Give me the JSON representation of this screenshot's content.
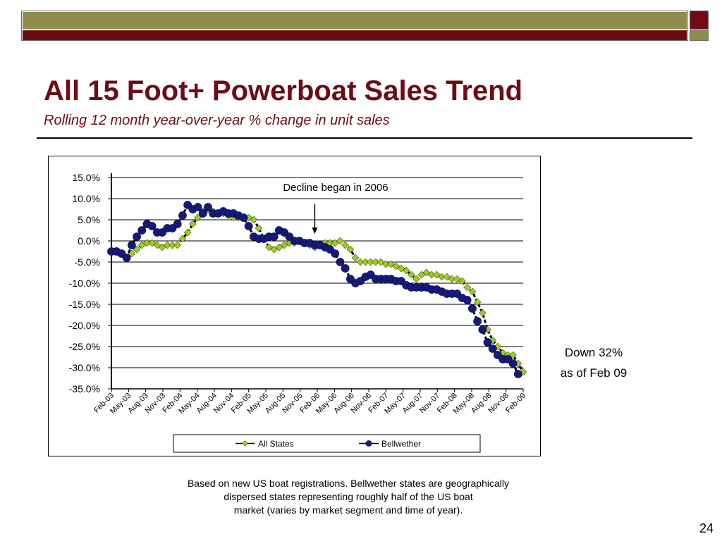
{
  "slide": {
    "title": "All 15 Foot+ Powerboat Sales Trend",
    "subtitle": "Rolling 12 month year-over-year % change in unit sales",
    "annotation_line1": "Down 32%",
    "annotation_line2": "as of Feb 09",
    "footnote_line1": "Based on new US boat registrations. Bellwether states are geographically",
    "footnote_line2": "dispersed states representing roughly half of the US boat",
    "footnote_line3": "market (varies by market segment and time of year).",
    "page_number": "24"
  },
  "colors": {
    "header_olive": "#8e8c4a",
    "header_maroon": "#6e0b14",
    "title": "#6e0b14",
    "series_all_states": "#9acd1e",
    "series_bellwether": "#151a7a"
  },
  "chart_data": {
    "type": "line",
    "ylim": [
      -35,
      15
    ],
    "yticks": [
      "15.0%",
      "10.0%",
      "5.0%",
      "0.0%",
      "-5.0%",
      "-10.0%",
      "-15.0%",
      "-20.0%",
      "-25.0%",
      "-30.0%",
      "-35.0%"
    ],
    "x_tick_labels": [
      "Feb-03",
      "May-03",
      "Aug-03",
      "Nov-03",
      "Feb-04",
      "May-04",
      "Aug-04",
      "Nov-04",
      "Feb-05",
      "May-05",
      "Aug-05",
      "Nov-05",
      "Feb-06",
      "May-06",
      "Aug-06",
      "Nov-06",
      "Feb-07",
      "May-07",
      "Aug-07",
      "Nov-07",
      "Feb-08",
      "May-08",
      "Aug-08",
      "Nov-08",
      "Feb-09"
    ],
    "grid": true,
    "legend_position": "bottom",
    "annotation": "Decline began in 2006",
    "annotation_x": "Jun-06",
    "series": [
      {
        "name": "All States",
        "values": [
          -2.5,
          -2.5,
          -3.0,
          -4.0,
          -3.0,
          -2.0,
          -1.0,
          -0.5,
          -0.5,
          -1.0,
          -1.5,
          -1.0,
          -1.0,
          -1.0,
          0.5,
          2.0,
          4.0,
          5.5,
          7.0,
          7.5,
          7.0,
          6.5,
          6.5,
          6.0,
          5.5,
          5.5,
          5.5,
          5.5,
          5.0,
          3.0,
          0.5,
          -1.5,
          -2.0,
          -1.5,
          -1.0,
          -0.5,
          -0.5,
          0.0,
          -0.5,
          -1.0,
          -1.5,
          -1.0,
          -0.5,
          -0.5,
          -0.5,
          0.0,
          -1.0,
          -2.0,
          -4.0,
          -5.0,
          -5.0,
          -5.0,
          -5.0,
          -5.0,
          -5.5,
          -5.5,
          -6.0,
          -6.5,
          -7.0,
          -8.0,
          -9.0,
          -8.0,
          -7.5,
          -8.0,
          -8.0,
          -8.5,
          -8.5,
          -9.0,
          -9.0,
          -9.5,
          -11.0,
          -12.0,
          -14.5,
          -17.0,
          -21.0,
          -23.5,
          -25.0,
          -26.5,
          -27.0,
          -27.0,
          -29.0,
          -31.0
        ]
      },
      {
        "name": "Bellwether",
        "values": [
          -2.5,
          -2.5,
          -3.0,
          -4.0,
          -1.0,
          1.0,
          2.5,
          4.0,
          3.5,
          2.0,
          2.0,
          3.0,
          3.0,
          4.0,
          6.0,
          8.5,
          7.5,
          8.0,
          6.5,
          8.0,
          6.5,
          6.5,
          7.0,
          6.5,
          6.5,
          6.0,
          5.5,
          3.5,
          1.0,
          0.5,
          0.5,
          1.0,
          1.0,
          2.5,
          2.0,
          1.0,
          0.0,
          0.0,
          -0.5,
          -0.5,
          -1.0,
          -1.0,
          -1.5,
          -2.0,
          -3.0,
          -5.0,
          -6.5,
          -9.0,
          -10.0,
          -9.5,
          -8.5,
          -8.0,
          -9.0,
          -9.0,
          -9.0,
          -9.0,
          -9.5,
          -9.5,
          -10.5,
          -11.0,
          -11.0,
          -11.0,
          -11.0,
          -11.5,
          -11.5,
          -12.0,
          -12.5,
          -12.5,
          -12.5,
          -13.5,
          -14.0,
          -16.0,
          -19.0,
          -21.0,
          -24.0,
          -25.5,
          -27.0,
          -28.0,
          -28.0,
          -29.0,
          -31.5
        ]
      }
    ]
  }
}
